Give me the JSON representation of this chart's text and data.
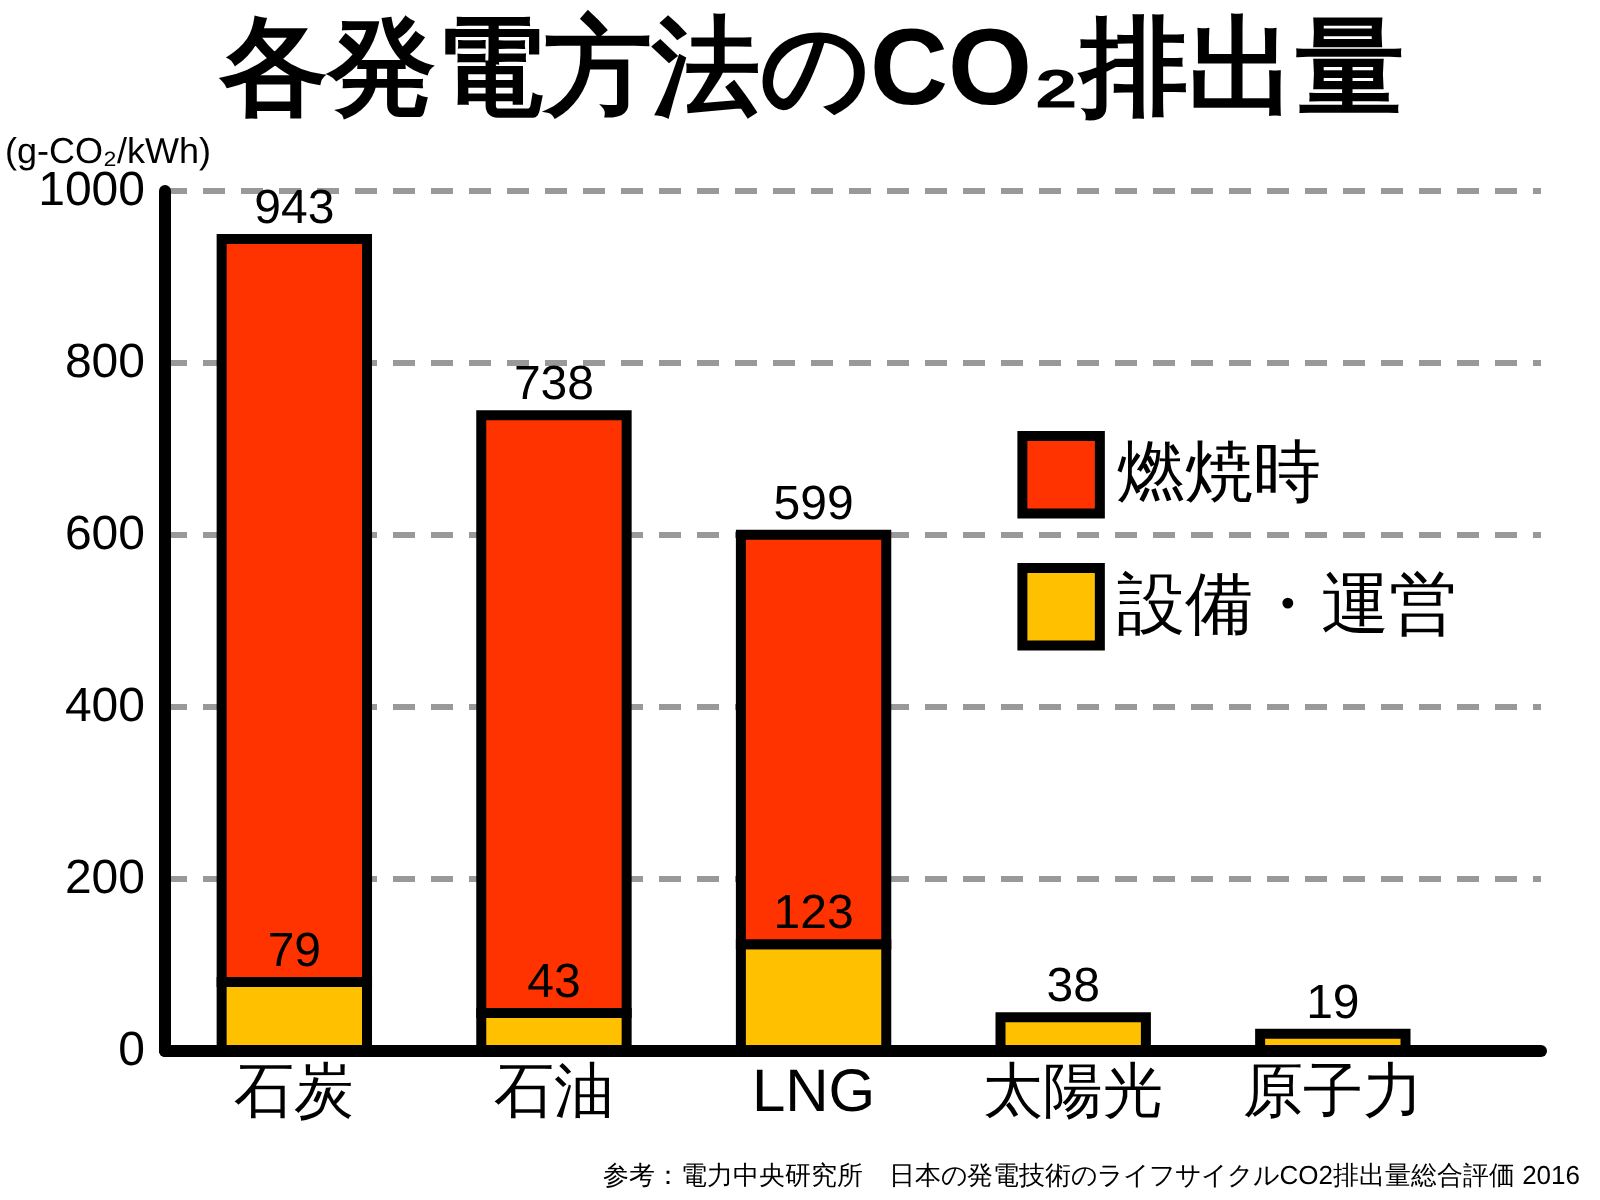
{
  "chart_data": {
    "type": "bar",
    "title": "各発電方法のCO₂排出量",
    "ylabel": "(g-CO₂/kWh)",
    "annotations": [
      "参考：電力中央研究所　日本の発電技術のライフサイクルCO2排出量総合評価 2016"
    ],
    "categories": [
      "石炭",
      "石油",
      "LNG",
      "太陽光",
      "原子力"
    ],
    "stacked": true,
    "series": [
      {
        "name": "設備・運営",
        "color": "#ffc000",
        "values": [
          79,
          43,
          123,
          38,
          19
        ],
        "value_labels": [
          "79",
          "43",
          "123",
          null,
          null
        ]
      },
      {
        "name": "燃焼時",
        "color": "#ff3300",
        "values": [
          864,
          695,
          476,
          null,
          null
        ]
      }
    ],
    "totals": [
      "943",
      "738",
      "599",
      "38",
      "19"
    ],
    "ylim": [
      0,
      1000
    ],
    "yticks": [
      0,
      200,
      400,
      600,
      800,
      1000
    ],
    "grid": "y",
    "legend": "right"
  }
}
